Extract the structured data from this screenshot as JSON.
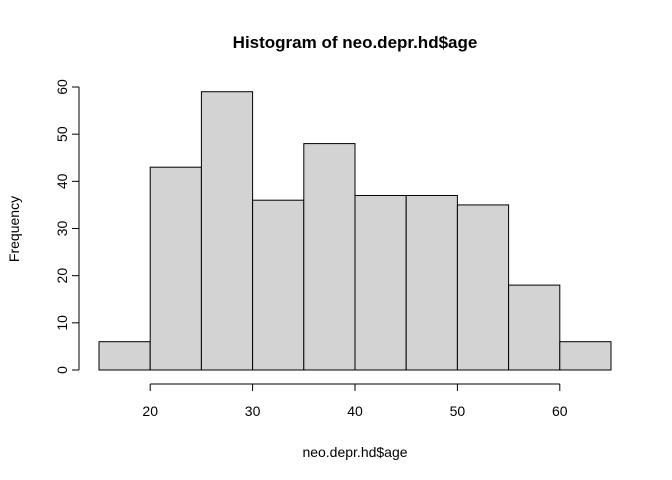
{
  "chart_data": {
    "type": "bar",
    "title": "Histogram of neo.depr.hd$age",
    "xlabel": "neo.depr.hd$age",
    "ylabel": "Frequency",
    "bins": [
      {
        "x0": 15,
        "x1": 20,
        "count": 6
      },
      {
        "x0": 20,
        "x1": 25,
        "count": 43
      },
      {
        "x0": 25,
        "x1": 30,
        "count": 59
      },
      {
        "x0": 30,
        "x1": 35,
        "count": 36
      },
      {
        "x0": 35,
        "x1": 40,
        "count": 48
      },
      {
        "x0": 40,
        "x1": 45,
        "count": 37
      },
      {
        "x0": 45,
        "x1": 50,
        "count": 37
      },
      {
        "x0": 50,
        "x1": 55,
        "count": 35
      },
      {
        "x0": 55,
        "x1": 60,
        "count": 18
      },
      {
        "x0": 60,
        "x1": 65,
        "count": 6
      }
    ],
    "xticks": [
      20,
      30,
      40,
      50,
      60
    ],
    "yticks": [
      0,
      10,
      20,
      30,
      40,
      50,
      60
    ],
    "xlim": [
      15,
      65
    ],
    "ylim": [
      0,
      60
    ],
    "grid": false,
    "bar_color": "#d3d3d3",
    "edge_color": "#000000"
  }
}
